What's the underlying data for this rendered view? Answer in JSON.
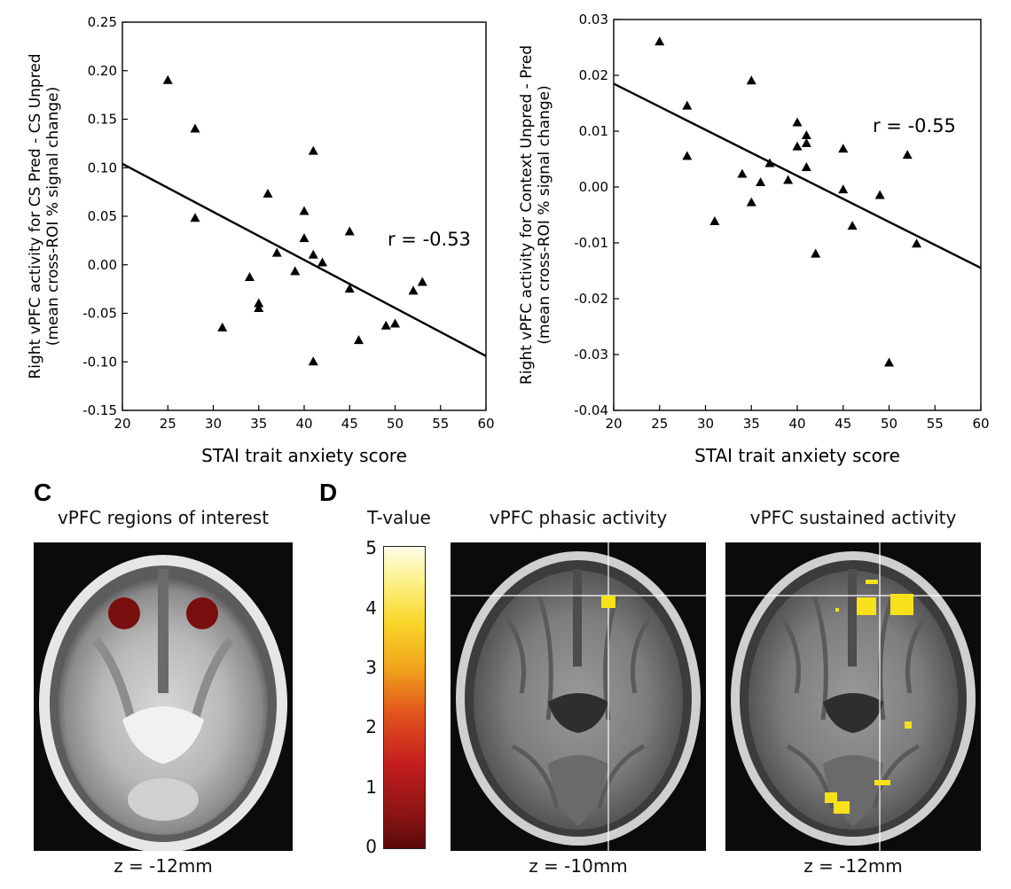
{
  "chart_data": [
    {
      "type": "scatter",
      "ylabel_line1": "Right vPFC activity for CS Pred - CS Unpred",
      "ylabel_line2": "(mean cross-ROI % signal change)",
      "xlabel": "STAI trait anxiety score",
      "xlim": [
        20,
        60
      ],
      "ylim": [
        -0.15,
        0.25
      ],
      "xticks": [
        "20",
        "25",
        "30",
        "35",
        "40",
        "45",
        "50",
        "55",
        "60"
      ],
      "yticks": [
        "-0.15",
        "-0.10",
        "-0.05",
        "0.00",
        "0.05",
        "0.10",
        "0.15",
        "0.20",
        "0.25"
      ],
      "annotation": "r = -0.53",
      "points": [
        [
          25,
          0.19
        ],
        [
          28,
          0.14
        ],
        [
          28,
          0.048
        ],
        [
          31,
          -0.065
        ],
        [
          34,
          -0.013
        ],
        [
          35,
          -0.04
        ],
        [
          35,
          -0.045
        ],
        [
          36,
          0.073
        ],
        [
          37,
          0.012
        ],
        [
          39,
          -0.007
        ],
        [
          40,
          0.055
        ],
        [
          40,
          0.027
        ],
        [
          41,
          0.117
        ],
        [
          41,
          0.01
        ],
        [
          41,
          -0.1
        ],
        [
          42,
          0.002
        ],
        [
          45,
          0.034
        ],
        [
          45,
          -0.025
        ],
        [
          46,
          -0.078
        ],
        [
          49,
          -0.063
        ],
        [
          50,
          -0.061
        ],
        [
          52,
          -0.027
        ],
        [
          53,
          -0.018
        ]
      ],
      "fit": [
        [
          20,
          0.104
        ],
        [
          60,
          -0.094
        ]
      ]
    },
    {
      "type": "scatter",
      "ylabel_line1": "Right vPFC activity for Context Unpred - Pred",
      "ylabel_line2": "(mean cross-ROI % signal change)",
      "xlabel": "STAI trait anxiety score",
      "xlim": [
        20,
        60
      ],
      "ylim": [
        -0.04,
        0.03
      ],
      "xticks": [
        "20",
        "25",
        "30",
        "35",
        "40",
        "45",
        "50",
        "55",
        "60"
      ],
      "yticks": [
        "-0.04",
        "-0.03",
        "-0.02",
        "-0.01",
        "0.00",
        "0.01",
        "0.02",
        "0.03"
      ],
      "annotation": "r = -0.55",
      "points": [
        [
          25,
          0.026
        ],
        [
          28,
          0.0145
        ],
        [
          28,
          0.0055
        ],
        [
          31,
          -0.0062
        ],
        [
          34,
          0.0023
        ],
        [
          35,
          0.019
        ],
        [
          35,
          -0.0028
        ],
        [
          36,
          0.0008
        ],
        [
          37,
          0.0042
        ],
        [
          39,
          0.0012
        ],
        [
          40,
          0.0115
        ],
        [
          40,
          0.0072
        ],
        [
          41,
          0.0092
        ],
        [
          41,
          0.0078
        ],
        [
          41,
          0.0035
        ],
        [
          42,
          -0.012
        ],
        [
          45,
          0.0068
        ],
        [
          45,
          -0.0005
        ],
        [
          46,
          -0.007
        ],
        [
          49,
          -0.0015
        ],
        [
          50,
          -0.0315
        ],
        [
          52,
          0.0057
        ],
        [
          53,
          -0.0102
        ]
      ],
      "fit": [
        [
          20,
          0.0185
        ],
        [
          60,
          -0.0145
        ]
      ]
    }
  ],
  "panel_c": {
    "label": "C",
    "title": "vPFC regions of interest",
    "caption": "z = -12mm",
    "roi_color": "#7a0f0f"
  },
  "panel_d": {
    "label": "D",
    "colorbar_title": "T-value",
    "colorbar_ticks": [
      "5",
      "4",
      "3",
      "2",
      "1",
      "0"
    ],
    "phasic_title": "vPFC phasic activity",
    "phasic_caption": "z = -10mm",
    "sustained_title": "vPFC sustained activity",
    "sustained_caption": "z = -12mm",
    "activation_color": "#f6e11a"
  }
}
